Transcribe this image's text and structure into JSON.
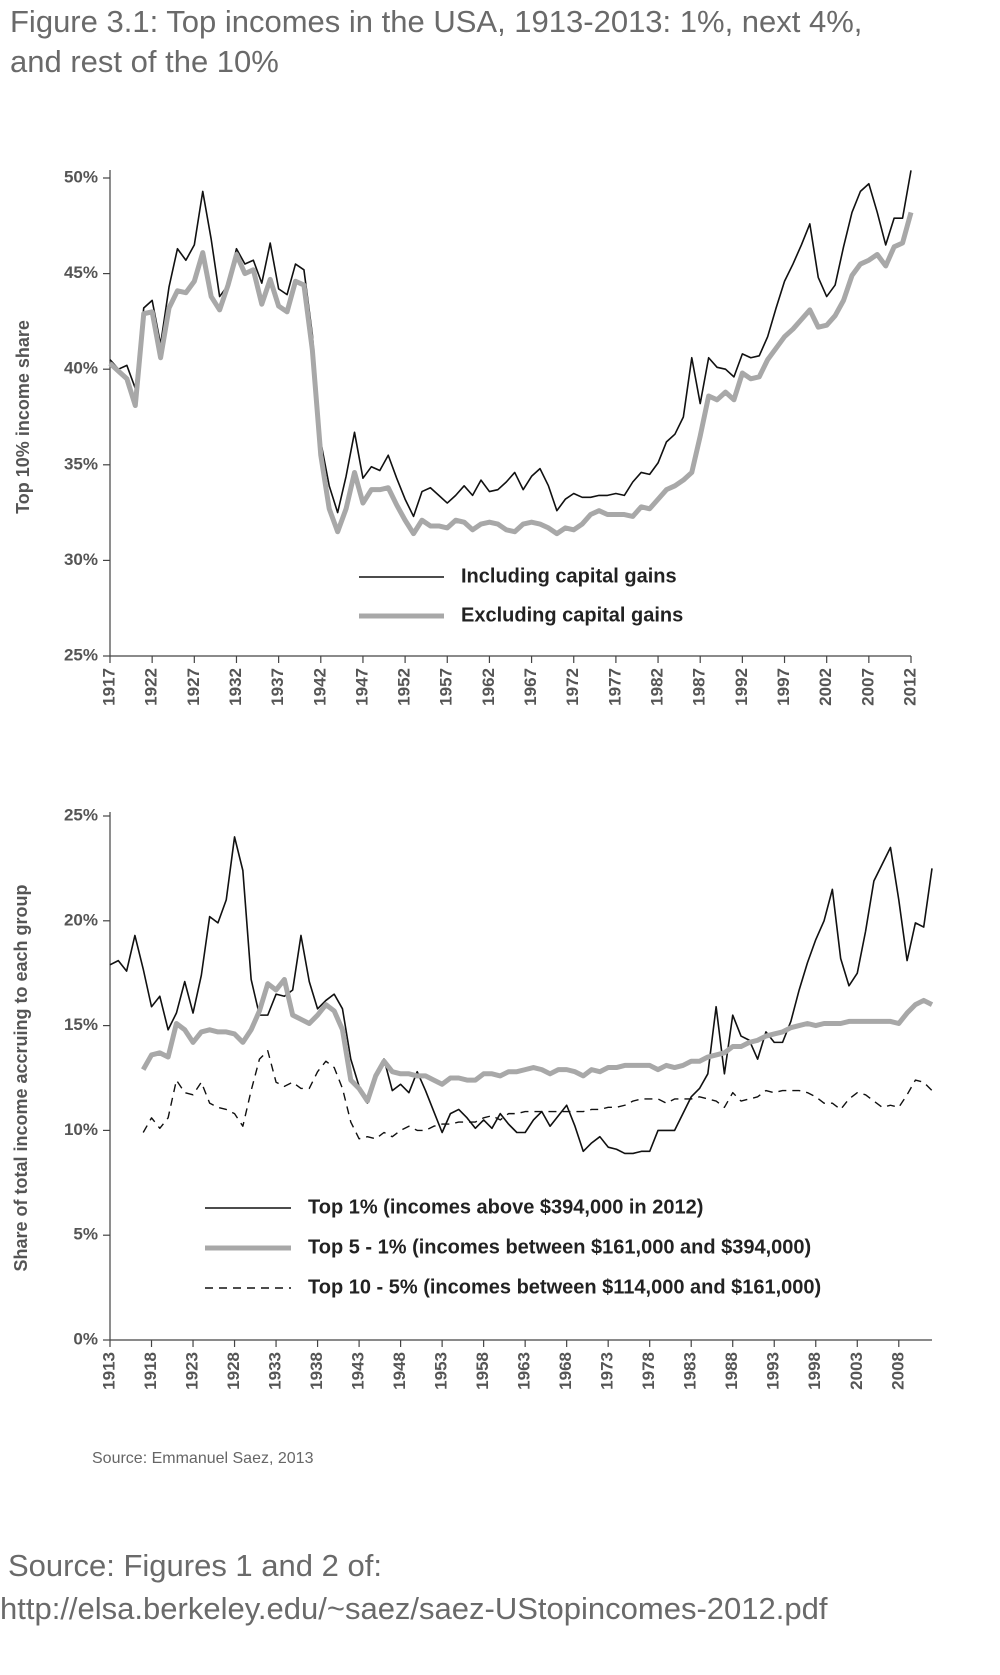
{
  "title": [
    "Figure 3.1: Top incomes in the USA, 1913-2013: 1%, next 4%,",
    "and rest of the 10%"
  ],
  "chart_data": [
    {
      "type": "line",
      "y_label": "Top 10% income share",
      "legend": "lower center",
      "x": [
        1917,
        1918,
        1919,
        1920,
        1921,
        1922,
        1923,
        1924,
        1925,
        1926,
        1927,
        1928,
        1929,
        1930,
        1931,
        1932,
        1933,
        1934,
        1935,
        1936,
        1937,
        1938,
        1939,
        1940,
        1941,
        1942,
        1943,
        1944,
        1945,
        1946,
        1947,
        1948,
        1949,
        1950,
        1951,
        1952,
        1953,
        1954,
        1955,
        1956,
        1957,
        1958,
        1959,
        1960,
        1961,
        1962,
        1963,
        1964,
        1965,
        1966,
        1967,
        1968,
        1969,
        1970,
        1971,
        1972,
        1973,
        1974,
        1975,
        1976,
        1977,
        1978,
        1979,
        1980,
        1981,
        1982,
        1983,
        1984,
        1985,
        1986,
        1987,
        1988,
        1989,
        1990,
        1991,
        1992,
        1993,
        1994,
        1995,
        1996,
        1997,
        1998,
        1999,
        2000,
        2001,
        2002,
        2003,
        2004,
        2005,
        2006,
        2007,
        2008,
        2009,
        2010,
        2011,
        2012
      ],
      "xlim": [
        1917,
        2012
      ],
      "xticks": [
        1917,
        1922,
        1927,
        1932,
        1937,
        1942,
        1947,
        1952,
        1957,
        1962,
        1967,
        1972,
        1977,
        1982,
        1987,
        1992,
        1997,
        2002,
        2007,
        2012
      ],
      "ylim": [
        25,
        50
      ],
      "yticks": [
        {
          "value": 25,
          "label": "25%"
        },
        {
          "value": 30,
          "label": "30%"
        },
        {
          "value": 35,
          "label": "35%"
        },
        {
          "value": 40,
          "label": "40%"
        },
        {
          "value": 45,
          "label": "45%"
        },
        {
          "value": 50,
          "label": "50%"
        }
      ],
      "series": [
        {
          "name": "Including capital gains",
          "color": "#111111",
          "width": 1.6,
          "style": "solid",
          "values": [
            40.5,
            40.0,
            40.2,
            39.0,
            43.2,
            43.6,
            41.3,
            44.3,
            46.3,
            45.7,
            46.5,
            49.3,
            46.8,
            43.8,
            44.4,
            46.3,
            45.5,
            45.7,
            44.5,
            46.6,
            44.2,
            43.9,
            45.5,
            45.2,
            41.8,
            36.2,
            33.9,
            32.5,
            34.4,
            36.7,
            34.3,
            34.9,
            34.7,
            35.5,
            34.3,
            33.2,
            32.3,
            33.6,
            33.8,
            33.4,
            33.0,
            33.4,
            33.9,
            33.4,
            34.2,
            33.6,
            33.7,
            34.1,
            34.6,
            33.7,
            34.4,
            34.8,
            33.9,
            32.6,
            33.2,
            33.5,
            33.3,
            33.3,
            33.4,
            33.4,
            33.5,
            33.4,
            34.1,
            34.6,
            34.5,
            35.1,
            36.2,
            36.6,
            37.5,
            40.6,
            38.2,
            40.6,
            40.1,
            40.0,
            39.6,
            40.8,
            40.6,
            40.7,
            41.7,
            43.2,
            44.6,
            45.5,
            46.5,
            47.6,
            44.8,
            43.8,
            44.4,
            46.4,
            48.2,
            49.3,
            49.7,
            48.2,
            46.5,
            47.9,
            47.9,
            50.4
          ]
        },
        {
          "name": "Excluding capital gains",
          "color": "#a8a8a8",
          "width": 5,
          "style": "solid",
          "values": [
            40.3,
            39.9,
            39.5,
            38.1,
            42.9,
            43.0,
            40.6,
            43.2,
            44.1,
            44.0,
            44.6,
            46.1,
            43.8,
            43.1,
            44.4,
            46.0,
            45.0,
            45.2,
            43.4,
            44.7,
            43.3,
            43.0,
            44.6,
            44.4,
            41.0,
            35.5,
            32.7,
            31.5,
            32.7,
            34.6,
            33.0,
            33.7,
            33.7,
            33.8,
            32.9,
            32.1,
            31.4,
            32.1,
            31.8,
            31.8,
            31.7,
            32.1,
            32.0,
            31.6,
            31.9,
            32.0,
            31.9,
            31.6,
            31.5,
            31.9,
            32.0,
            31.9,
            31.7,
            31.4,
            31.7,
            31.6,
            31.9,
            32.4,
            32.6,
            32.4,
            32.4,
            32.4,
            32.3,
            32.8,
            32.7,
            33.2,
            33.7,
            33.9,
            34.2,
            34.6,
            36.5,
            38.6,
            38.4,
            38.8,
            38.4,
            39.8,
            39.5,
            39.6,
            40.5,
            41.1,
            41.7,
            42.1,
            42.6,
            43.1,
            42.2,
            42.3,
            42.8,
            43.6,
            44.9,
            45.5,
            45.7,
            46.0,
            45.4,
            46.4,
            46.6,
            48.2
          ]
        }
      ]
    },
    {
      "type": "line",
      "y_label": "Share of total income accruing to each group",
      "legend": "lower center",
      "note": "Source: Emmanuel Saez, 2013",
      "x": [
        1913,
        1914,
        1915,
        1916,
        1917,
        1918,
        1919,
        1920,
        1921,
        1922,
        1923,
        1924,
        1925,
        1926,
        1927,
        1928,
        1929,
        1930,
        1931,
        1932,
        1933,
        1934,
        1935,
        1936,
        1937,
        1938,
        1939,
        1940,
        1941,
        1942,
        1943,
        1944,
        1945,
        1946,
        1947,
        1948,
        1949,
        1950,
        1951,
        1952,
        1953,
        1954,
        1955,
        1956,
        1957,
        1958,
        1959,
        1960,
        1961,
        1962,
        1963,
        1964,
        1965,
        1966,
        1967,
        1968,
        1969,
        1970,
        1971,
        1972,
        1973,
        1974,
        1975,
        1976,
        1977,
        1978,
        1979,
        1980,
        1981,
        1982,
        1983,
        1984,
        1985,
        1986,
        1987,
        1988,
        1989,
        1990,
        1991,
        1992,
        1993,
        1994,
        1995,
        1996,
        1997,
        1998,
        1999,
        2000,
        2001,
        2002,
        2003,
        2004,
        2005,
        2006,
        2007,
        2008,
        2009,
        2010,
        2011,
        2012
      ],
      "xlim": [
        1913,
        2012
      ],
      "xticks": [
        1913,
        1918,
        1923,
        1928,
        1933,
        1938,
        1943,
        1948,
        1953,
        1958,
        1963,
        1968,
        1973,
        1978,
        1983,
        1988,
        1993,
        1998,
        2003,
        2008
      ],
      "ylim": [
        0,
        25
      ],
      "yticks": [
        {
          "value": 0,
          "label": "0%"
        },
        {
          "value": 5,
          "label": "5%"
        },
        {
          "value": 10,
          "label": "10%"
        },
        {
          "value": 15,
          "label": "15%"
        },
        {
          "value": 20,
          "label": "20%"
        },
        {
          "value": 25,
          "label": "25%"
        }
      ],
      "series": [
        {
          "name": "Top 1% (incomes above $394,000 in 2012)",
          "color": "#111111",
          "width": 1.6,
          "style": "solid",
          "values": [
            17.9,
            18.1,
            17.6,
            19.3,
            17.7,
            15.9,
            16.4,
            14.8,
            15.6,
            17.1,
            15.6,
            17.4,
            20.2,
            19.9,
            21.0,
            24.0,
            22.4,
            17.2,
            15.5,
            15.5,
            16.5,
            16.4,
            16.7,
            19.3,
            17.1,
            15.8,
            16.2,
            16.5,
            15.8,
            13.4,
            12.1,
            11.3,
            12.5,
            13.4,
            11.9,
            12.2,
            11.8,
            12.8,
            11.9,
            10.9,
            9.9,
            10.8,
            11.0,
            10.6,
            10.1,
            10.5,
            10.1,
            10.8,
            10.3,
            9.9,
            9.9,
            10.5,
            10.9,
            10.2,
            10.7,
            11.2,
            10.2,
            9.0,
            9.4,
            9.7,
            9.2,
            9.1,
            8.9,
            8.9,
            9.0,
            9.0,
            10.0,
            10.0,
            10.0,
            10.8,
            11.6,
            12.0,
            12.7,
            15.9,
            12.7,
            15.5,
            14.5,
            14.3,
            13.4,
            14.7,
            14.2,
            14.2,
            15.2,
            16.7,
            18.0,
            19.1,
            20.0,
            21.5,
            18.2,
            16.9,
            17.5,
            19.5,
            21.9,
            22.7,
            23.5,
            21.0,
            18.1,
            19.9,
            19.7,
            22.5
          ]
        },
        {
          "name": "Top 5 - 1% (incomes between $161,000 and $394,000)",
          "color": "#a8a8a8",
          "width": 5,
          "style": "solid",
          "values": [
            null,
            null,
            null,
            null,
            12.9,
            13.6,
            13.7,
            13.5,
            15.1,
            14.8,
            14.2,
            14.7,
            14.8,
            14.7,
            14.7,
            14.6,
            14.2,
            14.8,
            15.7,
            17.0,
            16.7,
            17.2,
            15.5,
            15.3,
            15.1,
            15.5,
            16.0,
            15.7,
            14.8,
            12.4,
            12.0,
            11.4,
            12.6,
            13.3,
            12.8,
            12.7,
            12.7,
            12.6,
            12.6,
            12.4,
            12.2,
            12.5,
            12.5,
            12.4,
            12.4,
            12.7,
            12.7,
            12.6,
            12.8,
            12.8,
            12.9,
            13.0,
            12.9,
            12.7,
            12.9,
            12.9,
            12.8,
            12.6,
            12.9,
            12.8,
            13.0,
            13.0,
            13.1,
            13.1,
            13.1,
            13.1,
            12.9,
            13.1,
            13.0,
            13.1,
            13.3,
            13.3,
            13.5,
            13.6,
            13.7,
            14.0,
            14.0,
            14.2,
            14.3,
            14.5,
            14.6,
            14.7,
            14.9,
            15.0,
            15.1,
            15.0,
            15.1,
            15.1,
            15.1,
            15.2,
            15.2,
            15.2,
            15.2,
            15.2,
            15.2,
            15.1,
            15.6,
            16.0,
            16.2,
            16.0
          ]
        },
        {
          "name": "Top 10 - 5% (incomes between $114,000 and $161,000)",
          "color": "#111111",
          "width": 1.4,
          "style": "dashed",
          "values": [
            null,
            null,
            null,
            null,
            9.9,
            10.6,
            10.1,
            10.6,
            12.4,
            11.8,
            11.7,
            12.3,
            11.3,
            11.1,
            11.0,
            10.8,
            10.2,
            11.9,
            13.4,
            13.8,
            12.3,
            12.1,
            12.3,
            12.0,
            12.0,
            12.8,
            13.3,
            13.0,
            12.0,
            10.4,
            9.6,
            9.7,
            9.6,
            9.9,
            9.7,
            10.0,
            10.2,
            10.0,
            10.0,
            10.2,
            10.3,
            10.3,
            10.4,
            10.4,
            10.4,
            10.6,
            10.7,
            10.5,
            10.8,
            10.8,
            10.9,
            10.9,
            10.9,
            10.9,
            10.9,
            10.9,
            10.9,
            10.9,
            11.0,
            11.0,
            11.1,
            11.1,
            11.2,
            11.4,
            11.5,
            11.5,
            11.5,
            11.3,
            11.5,
            11.5,
            11.5,
            11.6,
            11.5,
            11.4,
            11.1,
            11.8,
            11.4,
            11.5,
            11.6,
            11.9,
            11.8,
            11.9,
            11.9,
            11.9,
            11.8,
            11.6,
            11.3,
            11.3,
            11.0,
            11.5,
            11.8,
            11.7,
            11.4,
            11.1,
            11.2,
            11.1,
            11.7,
            12.4,
            12.3,
            11.9
          ]
        }
      ]
    }
  ],
  "footer": [
    "Source: Figures 1 and 2 of:",
    "http://elsa.berkeley.edu/~saez/saez-UStopincomes-2012.pdf"
  ]
}
